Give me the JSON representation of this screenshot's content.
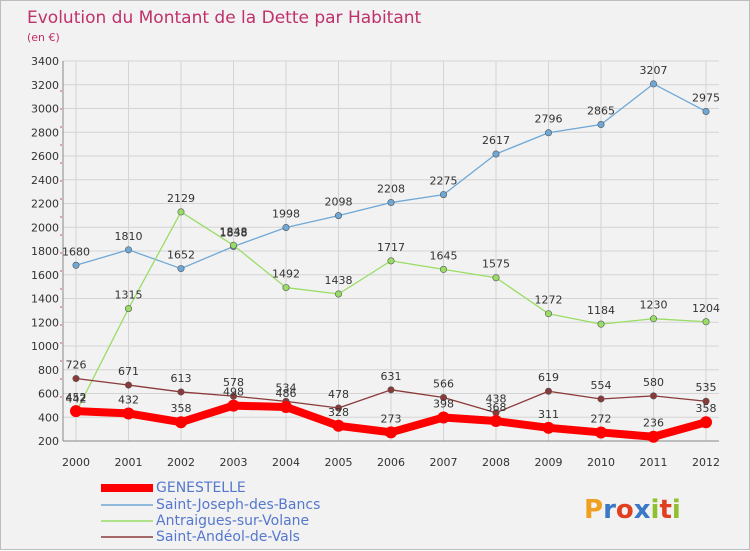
{
  "chart_data": {
    "type": "line",
    "title": "Evolution du Montant de la Dette par Habitant",
    "subtitle": "(en €)",
    "xlabel": "",
    "ylabel": "",
    "x": [
      "2000",
      "2001",
      "2002",
      "2003",
      "2004",
      "2005",
      "2006",
      "2007",
      "2008",
      "2009",
      "2010",
      "2011",
      "2012"
    ],
    "ylim": [
      200,
      3400
    ],
    "yticks": [
      200,
      400,
      600,
      800,
      1000,
      1200,
      1400,
      1600,
      1800,
      2000,
      2200,
      2400,
      2600,
      2800,
      3000,
      3200,
      3400
    ],
    "grid": true,
    "legend_position": "bottom-left",
    "series": [
      {
        "name": "GENESTELLE",
        "color": "#ff0000",
        "values": [
          452,
          432,
          358,
          498,
          486,
          328,
          273,
          398,
          368,
          311,
          272,
          236,
          358
        ]
      },
      {
        "name": "Saint-Joseph-des-Bancs",
        "color": "#6fa8d6",
        "values": [
          1680,
          1810,
          1652,
          1838,
          1998,
          2098,
          2208,
          2275,
          2617,
          2796,
          2865,
          3207,
          2975
        ]
      },
      {
        "name": "Antraigues-sur-Volane",
        "color": "#99dd66",
        "values": [
          442,
          1315,
          2129,
          1848,
          1492,
          1438,
          1717,
          1645,
          1575,
          1272,
          1184,
          1230,
          1204
        ]
      },
      {
        "name": "Saint-Andéol-de-Vals",
        "color": "#8b3a3a",
        "values": [
          726,
          671,
          613,
          578,
          534,
          478,
          631,
          566,
          438,
          619,
          554,
          580,
          535
        ]
      }
    ]
  },
  "logo": {
    "text": "Proxiti"
  }
}
